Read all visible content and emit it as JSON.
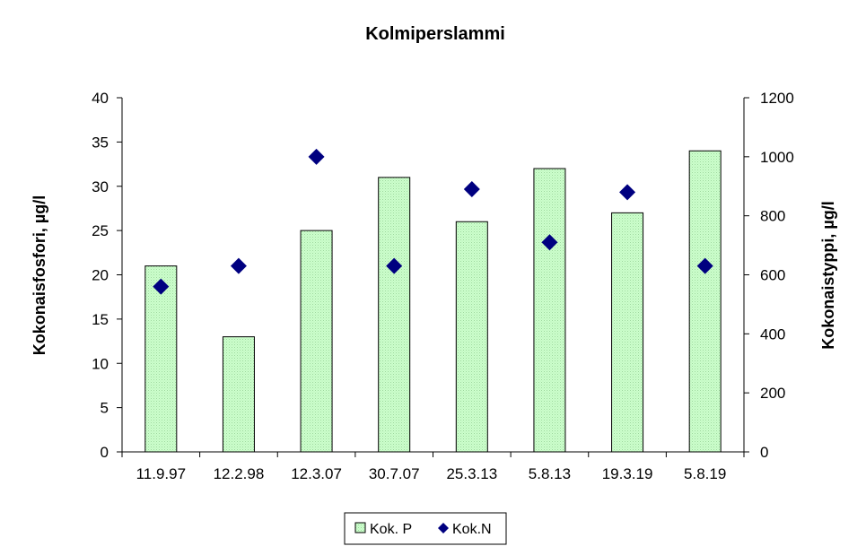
{
  "chart_data": {
    "type": "bar",
    "title": "Kolmiperslammi",
    "categories": [
      "11.9.97",
      "12.2.98",
      "12.3.07",
      "30.7.07",
      "25.3.13",
      "5.8.13",
      "19.3.19",
      "5.8.19"
    ],
    "series": [
      {
        "name": "Kok. P",
        "type": "bar",
        "axis": "left",
        "color": "#ccffcc",
        "values": [
          21,
          13,
          25,
          31,
          26,
          32,
          27,
          34
        ]
      },
      {
        "name": "Kok.N",
        "type": "scatter",
        "axis": "right",
        "color": "#000080",
        "marker": "diamond",
        "values": [
          560,
          630,
          1000,
          630,
          890,
          710,
          880,
          630
        ]
      }
    ],
    "ylabel": "Kokonaisfosfori, µg/l",
    "ylim": [
      0,
      40
    ],
    "yticks": [
      0,
      5,
      10,
      15,
      20,
      25,
      30,
      35,
      40
    ],
    "y2label": "Kokonaistyppi, µg/l",
    "y2lim": [
      0,
      1200
    ],
    "y2ticks": [
      0,
      200,
      400,
      600,
      800,
      1000,
      1200
    ],
    "grid": false,
    "legend_position": "bottom-center"
  }
}
